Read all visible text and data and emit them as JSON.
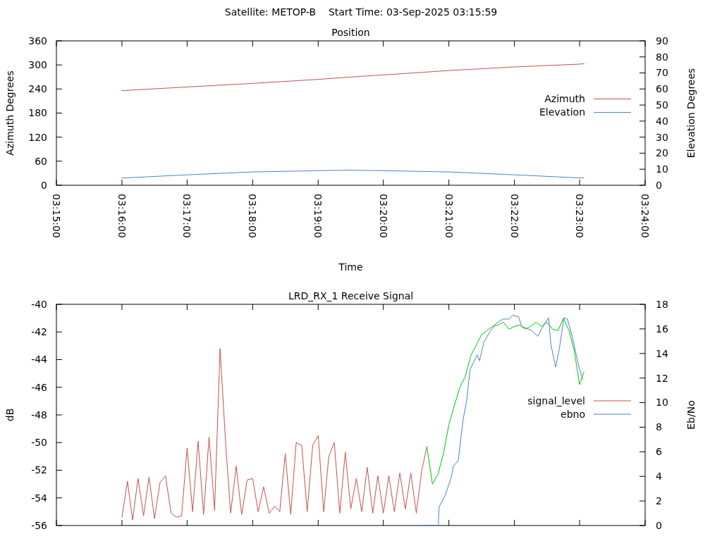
{
  "chart_data": [
    {
      "type": "line",
      "title": "Position",
      "annotations": [
        "Satellite: METOP-B    Start Time: 03-Sep-2025 03:15:59"
      ],
      "xlabel": "Time",
      "ylabel": "Azimuth Degrees",
      "y2label": "Elevation Degrees",
      "xlim": [
        3.25,
        3.4
      ],
      "xticks": [
        {
          "value": 3.25,
          "label": "03:15:00"
        },
        {
          "value": 3.2667,
          "label": "03:16:00"
        },
        {
          "value": 3.2833,
          "label": "03:17:00"
        },
        {
          "value": 3.3,
          "label": "03:18:00"
        },
        {
          "value": 3.3167,
          "label": "03:19:00"
        },
        {
          "value": 3.3333,
          "label": "03:20:00"
        },
        {
          "value": 3.35,
          "label": "03:21:00"
        },
        {
          "value": 3.3667,
          "label": "03:22:00"
        },
        {
          "value": 3.3833,
          "label": "03:23:00"
        },
        {
          "value": 3.4,
          "label": "03:24:00"
        }
      ],
      "ylim": [
        0,
        360
      ],
      "yticks": [
        0,
        60,
        120,
        180,
        240,
        300,
        360
      ],
      "y2lim": [
        0,
        90
      ],
      "y2ticks": [
        0,
        10,
        20,
        30,
        40,
        50,
        60,
        70,
        80,
        90
      ],
      "legend": "right",
      "series": [
        {
          "name": "Azimuth",
          "color": "#c8504e",
          "x": [
            3.2667,
            3.2833,
            3.3,
            3.3167,
            3.325,
            3.3333,
            3.35,
            3.3667,
            3.3833,
            3.3844
          ],
          "values": [
            236,
            245,
            254,
            264,
            270,
            275,
            286,
            295,
            302,
            303
          ]
        },
        {
          "name": "Elevation",
          "color": "#4f81c8",
          "axis": "y2",
          "x": [
            3.2667,
            3.2833,
            3.3,
            3.3167,
            3.325,
            3.3333,
            3.35,
            3.3667,
            3.3833,
            3.3844
          ],
          "values": [
            4.5,
            6.5,
            8.3,
            9.1,
            9.4,
            9.1,
            8.3,
            6.5,
            4.6,
            4.5
          ]
        }
      ]
    },
    {
      "type": "line",
      "title": "LRD_RX_1 Receive Signal",
      "ylabel": "dB",
      "y2label": "Eb/No",
      "tick_labels": "y",
      "xlim": [
        3.25,
        3.4
      ],
      "xticks": [
        {
          "value": 3.25,
          "label": null
        },
        {
          "value": 3.2667,
          "label": null
        },
        {
          "value": 3.2833,
          "label": null
        },
        {
          "value": 3.3,
          "label": null
        },
        {
          "value": 3.3167,
          "label": null
        },
        {
          "value": 3.3333,
          "label": null
        },
        {
          "value": 3.35,
          "label": null
        },
        {
          "value": 3.3667,
          "label": null
        },
        {
          "value": 3.3833,
          "label": null
        },
        {
          "value": 3.4,
          "label": null
        }
      ],
      "ylim": [
        -56,
        -40
      ],
      "yticks": [
        -56,
        -54,
        -52,
        -50,
        -48,
        -46,
        -44,
        -42,
        -40
      ],
      "y2lim": [
        0,
        18
      ],
      "y2ticks": [
        0,
        2,
        4,
        6,
        8,
        10,
        12,
        14,
        16,
        18
      ],
      "legend": "right",
      "series": [
        {
          "name": "signal_level",
          "color": "#c8504e",
          "x": [
            3.2667,
            3.2681,
            3.2694,
            3.2708,
            3.2722,
            3.2736,
            3.275,
            3.2764,
            3.2778,
            3.2792,
            3.2806,
            3.2819,
            3.2833,
            3.2847,
            3.2861,
            3.2875,
            3.2889,
            3.2903,
            3.2917,
            3.2931,
            3.2944,
            3.2958,
            3.2972,
            3.2986,
            3.3,
            3.3014,
            3.3028,
            3.3042,
            3.3056,
            3.3069,
            3.3083,
            3.3097,
            3.3111,
            3.3125,
            3.3139,
            3.3153,
            3.3167,
            3.3181,
            3.3194,
            3.3208,
            3.3222,
            3.3236,
            3.325,
            3.3264,
            3.3278,
            3.3292,
            3.3306,
            3.3319,
            3.3333,
            3.3347,
            3.3361,
            3.3375,
            3.3389,
            3.3403,
            3.3417,
            3.3431,
            3.3444
          ],
          "values": [
            -55.4,
            -52.8,
            -55.6,
            -52.6,
            -55.3,
            -52.5,
            -55.5,
            -52.9,
            -52.4,
            -55.1,
            -55.4,
            -55.3,
            -50.4,
            -55.0,
            -49.9,
            -55.2,
            -49.6,
            -54.9,
            -43.2,
            -50.0,
            -55.1,
            -51.7,
            -55.2,
            -52.7,
            -52.6,
            -55.0,
            -53.2,
            -55.1,
            -54.6,
            -55.0,
            -50.8,
            -55.2,
            -50.0,
            -50.2,
            -55.0,
            -50.2,
            -49.5,
            -55.0,
            -51.0,
            -50.0,
            -55.1,
            -50.7,
            -54.8,
            -52.6,
            -55.0,
            -51.8,
            -55.1,
            -52.4,
            -55.1,
            -52.4,
            -55.0,
            -52.2,
            -54.8,
            -52.2,
            -55.1,
            -52.0,
            -50.3
          ]
        },
        {
          "color": "#00c800",
          "x": [
            3.3444,
            3.3458,
            3.3472,
            3.3486,
            3.35,
            3.3514,
            3.3528,
            3.3542,
            3.3556,
            3.3569,
            3.3583,
            3.3597,
            3.3611,
            3.3625,
            3.3639,
            3.3653,
            3.3667,
            3.3681,
            3.3694,
            3.3708,
            3.3722,
            3.3736,
            3.375,
            3.3764,
            3.3778,
            3.3792,
            3.3806,
            3.3819,
            3.3833,
            3.3844
          ],
          "values": [
            -50.3,
            -53.0,
            -52.3,
            -50.8,
            -48.7,
            -47.3,
            -46.0,
            -45.2,
            -43.7,
            -43.0,
            -42.2,
            -41.9,
            -41.6,
            -41.5,
            -41.3,
            -41.8,
            -41.6,
            -41.5,
            -41.8,
            -41.6,
            -41.3,
            -41.6,
            -41.3,
            -41.8,
            -41.9,
            -41.0,
            -41.9,
            -43.3,
            -45.8,
            -44.9
          ]
        },
        {
          "name": "ebno",
          "color": "#4f81c8",
          "axis": "y2",
          "x": [
            3.3434,
            3.3473,
            3.3475,
            3.3491,
            3.3506,
            3.3511,
            3.3524,
            3.3536,
            3.3545,
            3.3554,
            3.3572,
            3.3578,
            3.3589,
            3.3605,
            3.3619,
            3.3637,
            3.3653,
            3.3662,
            3.3677,
            3.3686,
            3.3709,
            3.3727,
            3.3736,
            3.3754,
            3.376,
            3.3772,
            3.3781,
            3.3793,
            3.3802,
            3.3814,
            3.3823,
            3.3832,
            3.3841
          ],
          "values": [
            0,
            0,
            1.5,
            2.5,
            3.9,
            4.8,
            5.3,
            8.6,
            10.1,
            12.7,
            13.9,
            13.4,
            14.9,
            15.8,
            16.4,
            16.8,
            16.8,
            17.1,
            17.0,
            16.2,
            15.9,
            15.4,
            16.0,
            16.9,
            14.7,
            12.9,
            14.3,
            16.9,
            16.8,
            15.4,
            14.1,
            12.8,
            11.9
          ]
        }
      ]
    }
  ]
}
